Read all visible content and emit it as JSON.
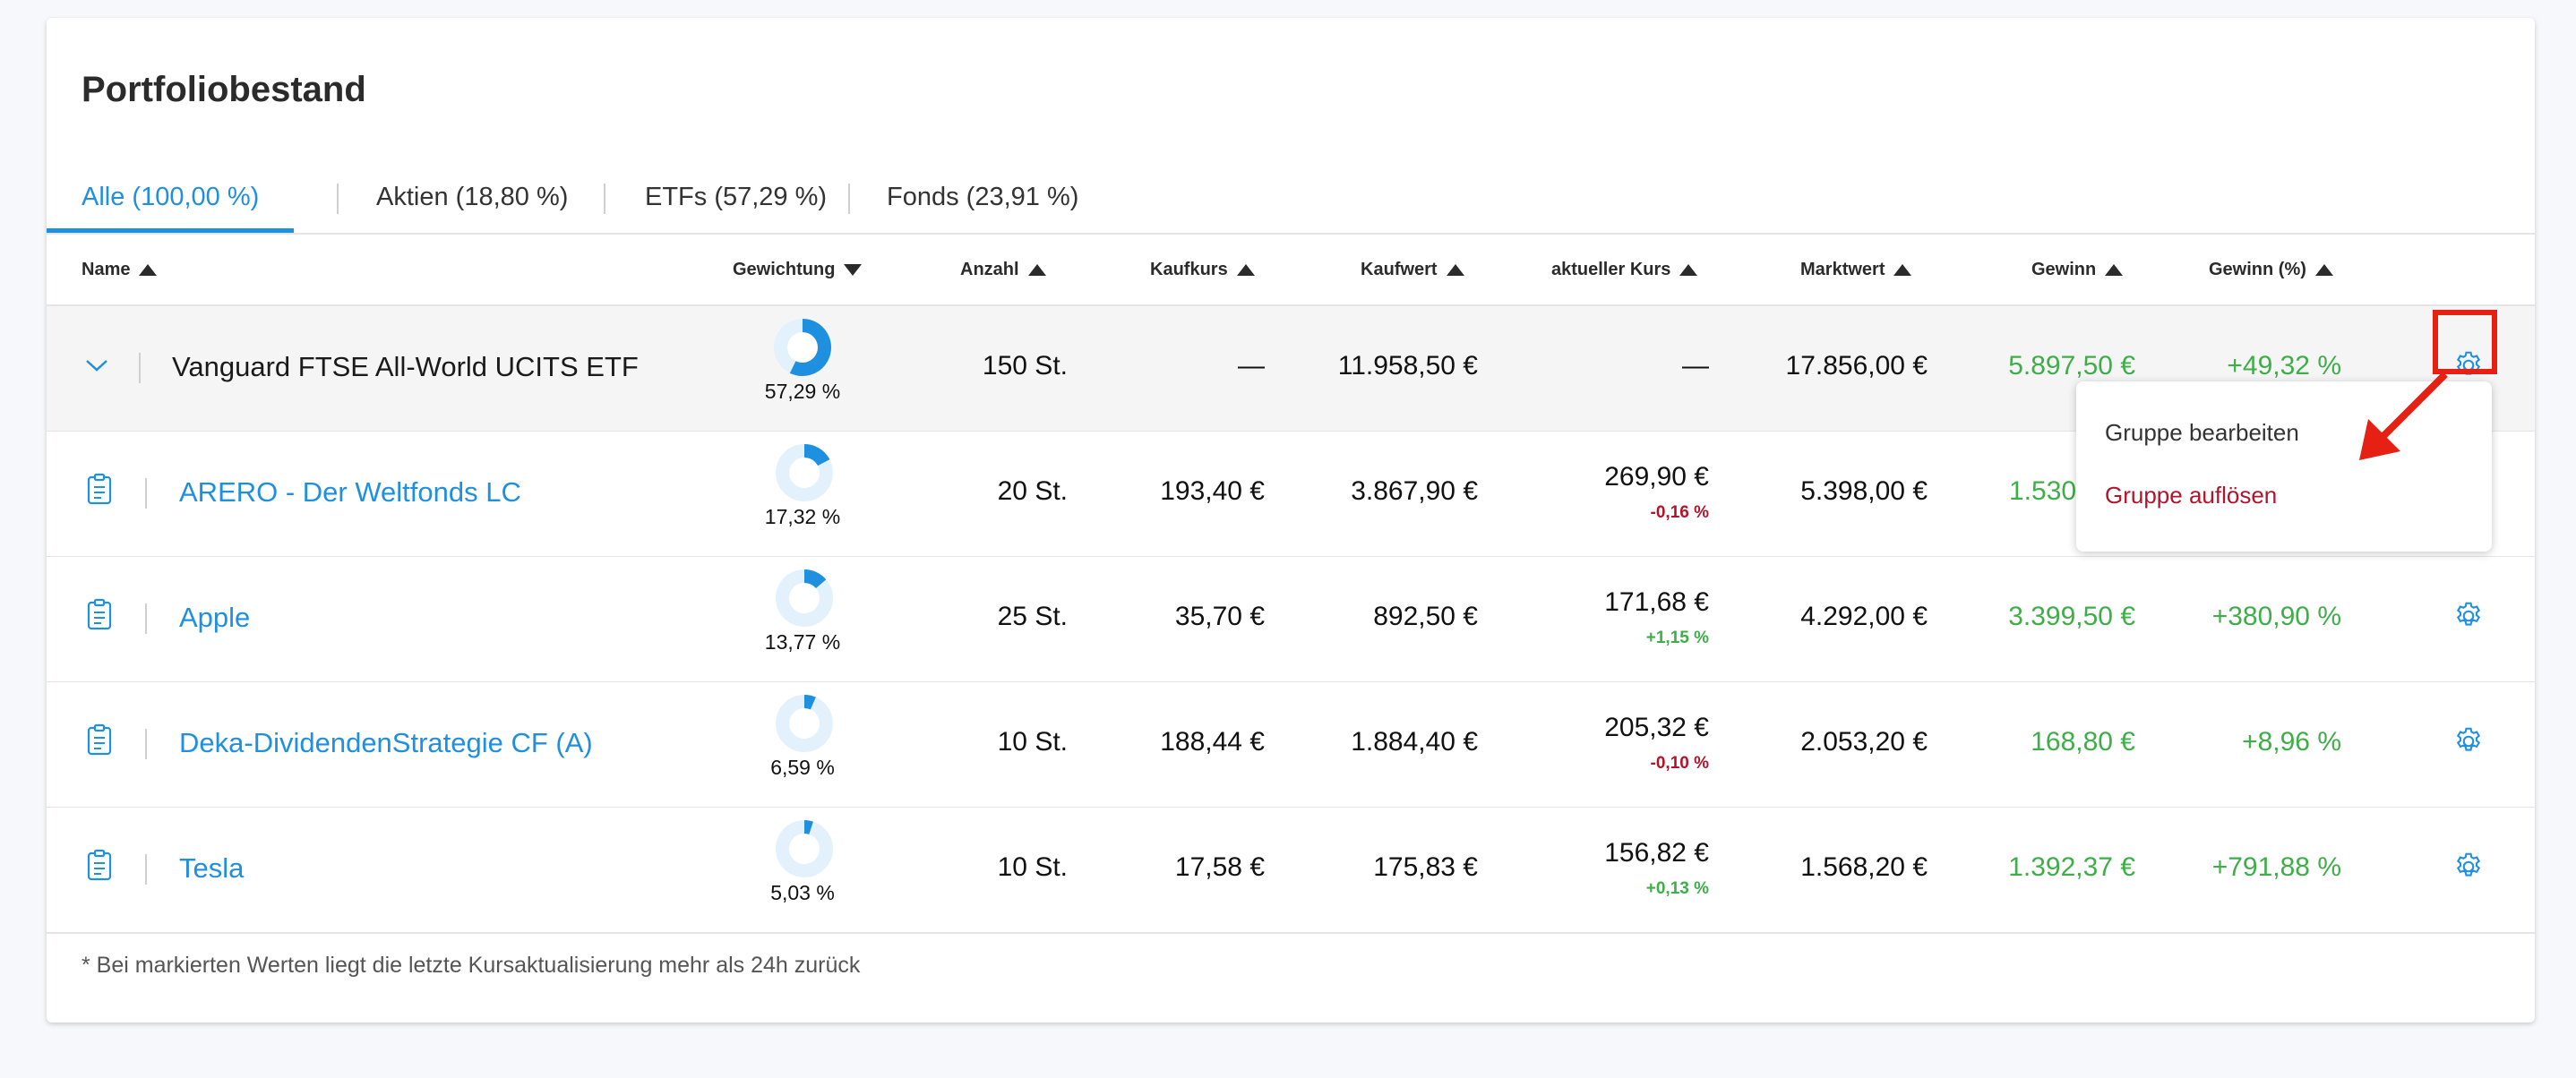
{
  "card": {
    "title": "Portfoliobestand",
    "tabs": [
      {
        "label": "Alle (100,00 %)",
        "active": true
      },
      {
        "label": "Aktien (18,80 %)",
        "active": false
      },
      {
        "label": "ETFs (57,29 %)",
        "active": false
      },
      {
        "label": "Fonds (23,91 %)",
        "active": false
      }
    ],
    "columns": {
      "name": "Name",
      "gewichtung": "Gewichtung",
      "anzahl": "Anzahl",
      "kaufkurs": "Kaufkurs",
      "kaufwert": "Kaufwert",
      "aktueller_kurs": "aktueller Kurs",
      "marktwert": "Marktwert",
      "gewinn": "Gewinn",
      "gewinn_pct": "Gewinn (%)"
    },
    "rows": [
      {
        "name": "Vanguard FTSE All-World UCITS ETF",
        "weight": "57,29 %",
        "weight_value": 57.29,
        "anzahl": "150 St.",
        "kaufkurs": "—",
        "kaufwert": "11.958,50 €",
        "kurs": "—",
        "kurs_change": "",
        "marktwert": "17.856,00 €",
        "gewinn": "5.897,50 €",
        "gewinn_pct": "+49,32 %"
      },
      {
        "name": "ARERO - Der Weltfonds LC",
        "weight": "17,32 %",
        "weight_value": 17.32,
        "anzahl": "20 St.",
        "kaufkurs": "193,40 €",
        "kaufwert": "3.867,90 €",
        "kurs": "269,90 €",
        "kurs_change": "-0,16 %",
        "marktwert": "5.398,00 €",
        "gewinn": "1.530,",
        "gewinn_pct": ""
      },
      {
        "name": "Apple",
        "weight": "13,77 %",
        "weight_value": 13.77,
        "anzahl": "25 St.",
        "kaufkurs": "35,70 €",
        "kaufwert": "892,50 €",
        "kurs": "171,68 €",
        "kurs_change": "+1,15 %",
        "marktwert": "4.292,00 €",
        "gewinn": "3.399,50 €",
        "gewinn_pct": "+380,90 %"
      },
      {
        "name": "Deka-DividendenStrategie CF (A)",
        "weight": "6,59 %",
        "weight_value": 6.59,
        "anzahl": "10 St.",
        "kaufkurs": "188,44 €",
        "kaufwert": "1.884,40 €",
        "kurs": "205,32 €",
        "kurs_change": "-0,10 %",
        "marktwert": "2.053,20 €",
        "gewinn": "168,80 €",
        "gewinn_pct": "+8,96 %"
      },
      {
        "name": "Tesla",
        "weight": "5,03 %",
        "weight_value": 5.03,
        "anzahl": "10 St.",
        "kaufkurs": "17,58 €",
        "kaufwert": "175,83 €",
        "kurs": "156,82 €",
        "kurs_change": "+0,13 %",
        "marktwert": "1.568,20 €",
        "gewinn": "1.392,37 €",
        "gewinn_pct": "+791,88 %"
      }
    ],
    "footer": "* Bei markierten Werten liegt die letzte Kursaktualisierung mehr als 24h zurück"
  },
  "menu": {
    "edit": "Gruppe bearbeiten",
    "dissolve": "Gruppe auflösen"
  },
  "colors": {
    "accent": "#1f8fe0",
    "positive": "#3fae49",
    "negative": "#b3142b",
    "highlight": "#e62012"
  }
}
